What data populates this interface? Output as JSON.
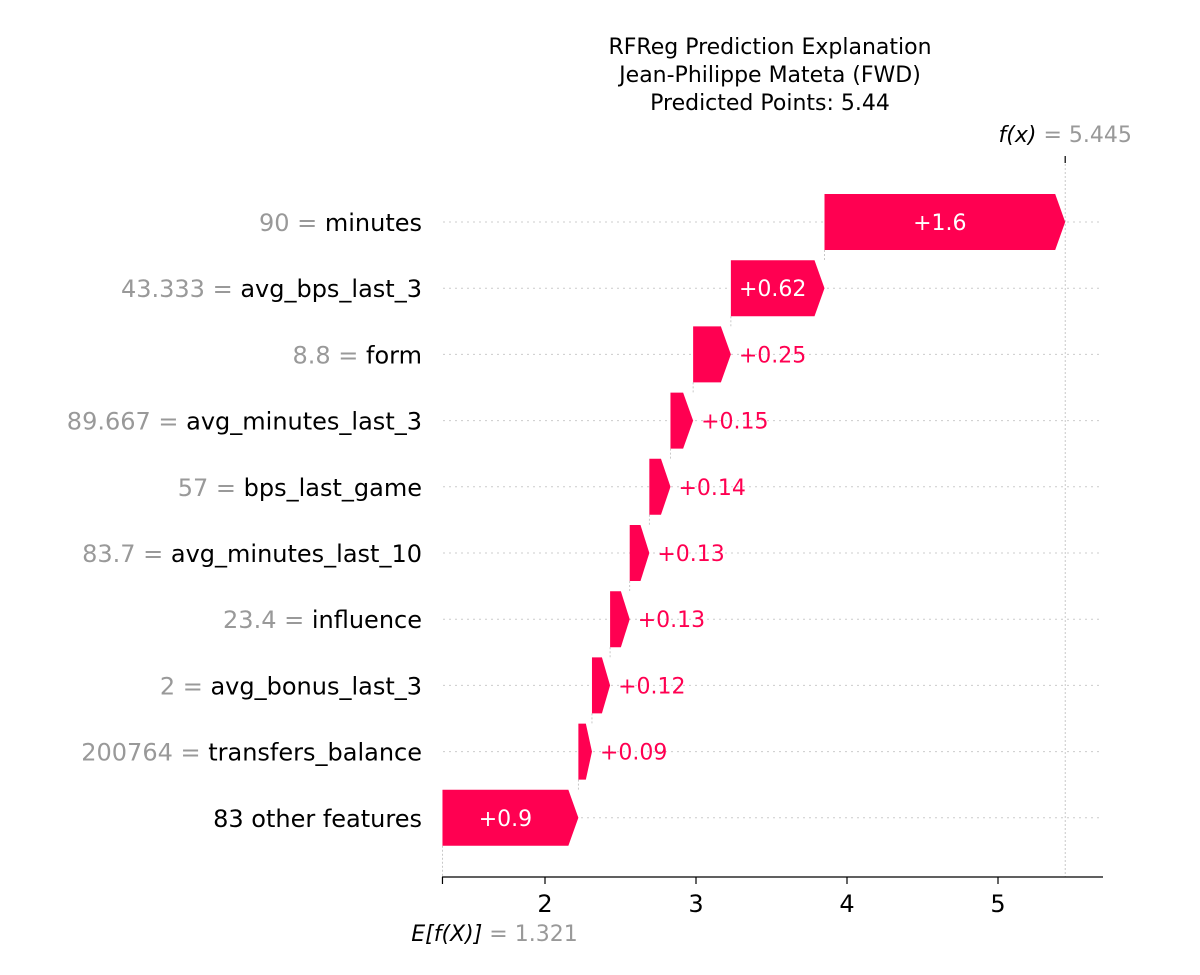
{
  "chart_data": {
    "type": "waterfall",
    "title": [
      "RFReg Prediction Explanation",
      "Jean-Philippe Mateta (FWD)",
      "Predicted Points: 5.44"
    ],
    "base_value": 1.321,
    "base_label": "E[f(X)]",
    "base_value_text": "1.321",
    "final_value": 5.445,
    "final_label": "f(x)",
    "final_value_text": "5.445",
    "xlim": [
      1.321,
      5.7
    ],
    "xticks": [
      2,
      3,
      4,
      5
    ],
    "features": [
      {
        "value_text": "90",
        "name": "minutes",
        "contribution": 1.6,
        "label": "+1.6"
      },
      {
        "value_text": "43.333",
        "name": "avg_bps_last_3",
        "contribution": 0.62,
        "label": "+0.62"
      },
      {
        "value_text": "8.8",
        "name": "form",
        "contribution": 0.25,
        "label": "+0.25"
      },
      {
        "value_text": "89.667",
        "name": "avg_minutes_last_3",
        "contribution": 0.15,
        "label": "+0.15"
      },
      {
        "value_text": "57",
        "name": "bps_last_game",
        "contribution": 0.14,
        "label": "+0.14"
      },
      {
        "value_text": "83.7",
        "name": "avg_minutes_last_10",
        "contribution": 0.13,
        "label": "+0.13"
      },
      {
        "value_text": "23.4",
        "name": "influence",
        "contribution": 0.13,
        "label": "+0.13"
      },
      {
        "value_text": "2",
        "name": "avg_bonus_last_3",
        "contribution": 0.12,
        "label": "+0.12"
      },
      {
        "value_text": "200764",
        "name": "transfers_balance",
        "contribution": 0.09,
        "label": "+0.09"
      },
      {
        "value_text": "",
        "name": "83 other features",
        "contribution": 0.9,
        "label": "+0.9"
      }
    ],
    "colors": {
      "positive": "#ff0051",
      "value_text": "#999999",
      "axis": "#000000",
      "grid": "#cccccc"
    }
  }
}
